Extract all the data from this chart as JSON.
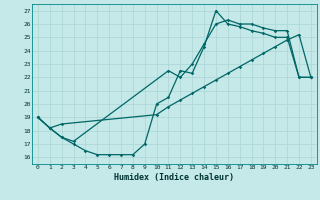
{
  "xlabel": "Humidex (Indice chaleur)",
  "bg_color": "#c5e8e8",
  "line_color": "#006666",
  "grid_color": "#b0d8d8",
  "xlim": [
    -0.5,
    23.5
  ],
  "ylim": [
    15.5,
    27.5
  ],
  "xticks": [
    0,
    1,
    2,
    3,
    4,
    5,
    6,
    7,
    8,
    9,
    10,
    11,
    12,
    13,
    14,
    15,
    16,
    17,
    18,
    19,
    20,
    21,
    22,
    23
  ],
  "yticks": [
    16,
    17,
    18,
    19,
    20,
    21,
    22,
    23,
    24,
    25,
    26,
    27
  ],
  "curve1_x": [
    0,
    1,
    2,
    10,
    11,
    12,
    13,
    14,
    15,
    16,
    17,
    18,
    19,
    20,
    21,
    22,
    23
  ],
  "curve1_y": [
    19,
    18.2,
    18.5,
    19.2,
    19.8,
    20.3,
    20.8,
    21.3,
    21.8,
    22.3,
    22.8,
    23.3,
    23.8,
    24.3,
    24.8,
    25.2,
    22.0
  ],
  "curve2_x": [
    0,
    1,
    2,
    3,
    4,
    5,
    6,
    7,
    8,
    9,
    10,
    11,
    12,
    13,
    14,
    15,
    16,
    17,
    18,
    19,
    20,
    21,
    22,
    23
  ],
  "curve2_y": [
    19,
    18.2,
    17.5,
    17.0,
    16.5,
    16.2,
    16.2,
    16.2,
    16.2,
    17.0,
    20.0,
    20.5,
    22.5,
    22.3,
    24.3,
    27.0,
    26.0,
    25.8,
    25.5,
    25.3,
    25.0,
    25.0,
    22.0,
    22.0
  ],
  "curve3_x": [
    0,
    1,
    2,
    3,
    11,
    12,
    13,
    14,
    15,
    16,
    17,
    18,
    19,
    20,
    21,
    22,
    23
  ],
  "curve3_y": [
    19,
    18.2,
    17.5,
    17.2,
    22.5,
    22.0,
    23.0,
    24.5,
    26.0,
    26.3,
    26.0,
    26.0,
    25.7,
    25.5,
    25.5,
    22.0,
    22.0
  ]
}
